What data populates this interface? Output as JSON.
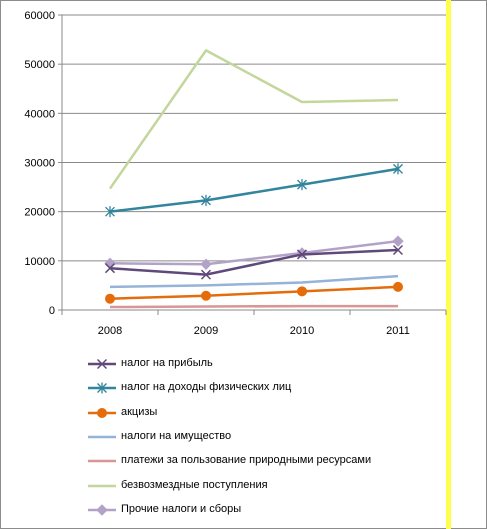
{
  "chart_data": {
    "type": "line",
    "title": "",
    "xlabel": "",
    "ylabel": "",
    "categories": [
      "2008",
      "2009",
      "2010",
      "2011"
    ],
    "ylim": [
      0,
      60000
    ],
    "yticks": [
      "0",
      "10000",
      "20000",
      "30000",
      "40000",
      "50000",
      "60000"
    ],
    "grid": "horizontal",
    "legend_position": "bottom",
    "series": [
      {
        "name": "налог на прибыль",
        "values": [
          8500,
          7200,
          11300,
          12200
        ],
        "color": "#60497a",
        "marker": "x"
      },
      {
        "name": "налог на доходы физических лиц",
        "values": [
          20000,
          22300,
          25500,
          28700
        ],
        "color": "#31859c",
        "marker": "asterisk"
      },
      {
        "name": "акцизы",
        "values": [
          2300,
          2900,
          3800,
          4700
        ],
        "color": "#e46c0a",
        "marker": "circle"
      },
      {
        "name": "налоги на имущество",
        "values": [
          4700,
          5000,
          5600,
          6900
        ],
        "color": "#95b3d7",
        "marker": "none"
      },
      {
        "name": "платежи за пользование природными ресурсами",
        "values": [
          600,
          700,
          800,
          800
        ],
        "color": "#d99694",
        "marker": "none"
      },
      {
        "name": "безвозмездные поступления",
        "values": [
          24700,
          52800,
          42300,
          42700
        ],
        "color": "#c3d69b",
        "marker": "none"
      },
      {
        "name": "Прочие налоги и сборы",
        "values": [
          9500,
          9300,
          11600,
          14000
        ],
        "color": "#b3a2c7",
        "marker": "diamond"
      }
    ]
  }
}
